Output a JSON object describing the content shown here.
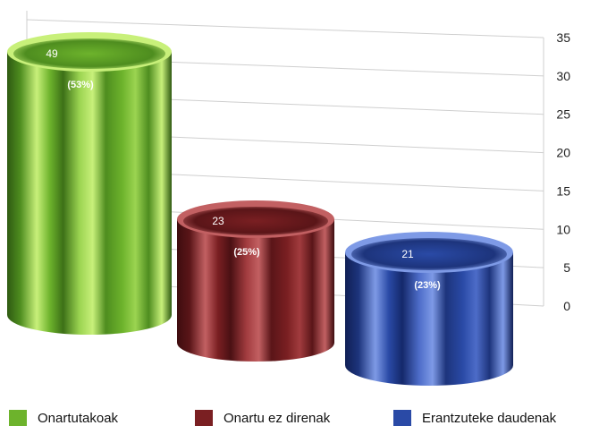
{
  "chart_data": {
    "type": "bar",
    "style": "3d-cylinder",
    "categories": [
      "Onartutakoak",
      "Onartu ez direnak",
      "Erantzuteke daudenak"
    ],
    "values": [
      49,
      23,
      21
    ],
    "percent_labels": [
      "(53%)",
      "(25%)",
      "(23%)"
    ],
    "value_labels": [
      "49",
      "23",
      "21"
    ],
    "yticks": [
      0,
      5,
      10,
      15,
      20,
      25,
      30,
      35
    ],
    "ylim": [
      0,
      35
    ],
    "grid": true,
    "y_axis_side": "right",
    "legend_position": "bottom",
    "colors": [
      "#6db32c",
      "#7a1f22",
      "#2a4aa6"
    ],
    "title": "",
    "xlabel": "",
    "ylabel": ""
  }
}
